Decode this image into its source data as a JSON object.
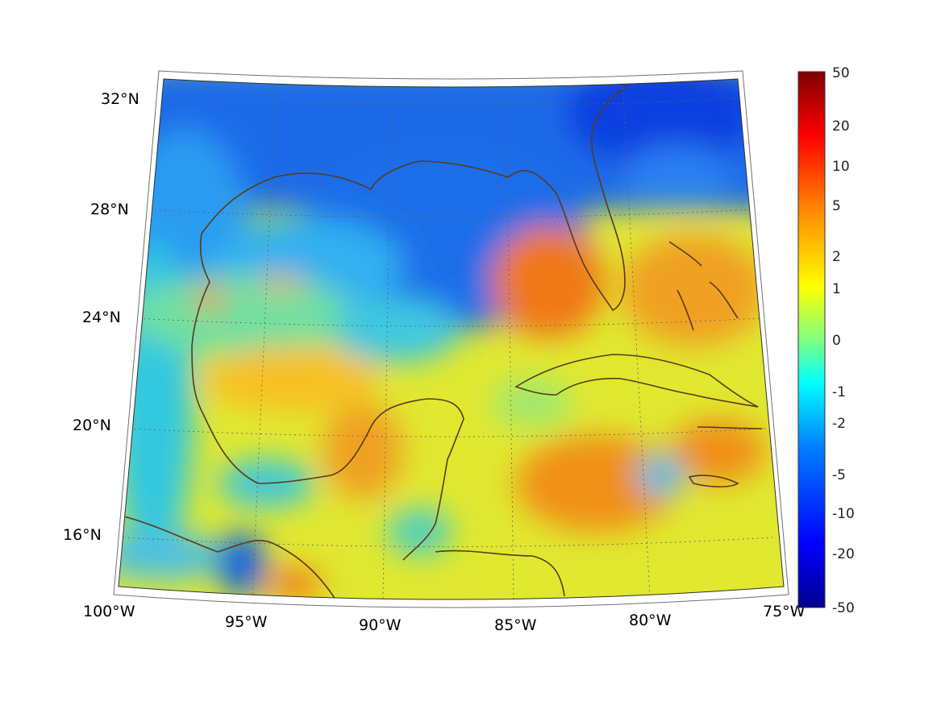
{
  "map": {
    "lat_labels": [
      "32°N",
      "28°N",
      "24°N",
      "20°N",
      "16°N"
    ],
    "lon_labels": [
      "100°W",
      "95°W",
      "90°W",
      "85°W",
      "80°W",
      "75°W"
    ],
    "grid": true,
    "projection": "conic",
    "coastline_color": "#5a3a1a",
    "colormap": "jet"
  },
  "colorbar": {
    "tick_labels": [
      "50",
      "20",
      "10",
      "5",
      "2",
      "1",
      "0",
      "-1",
      "-2",
      "-5",
      "-10",
      "-20",
      "-50"
    ],
    "range": [
      -50,
      50
    ],
    "colors": [
      "#000080",
      "#0000ff",
      "#0080ff",
      "#00ffff",
      "#80ff80",
      "#ffff00",
      "#ff8000",
      "#ff0000",
      "#800000"
    ]
  }
}
